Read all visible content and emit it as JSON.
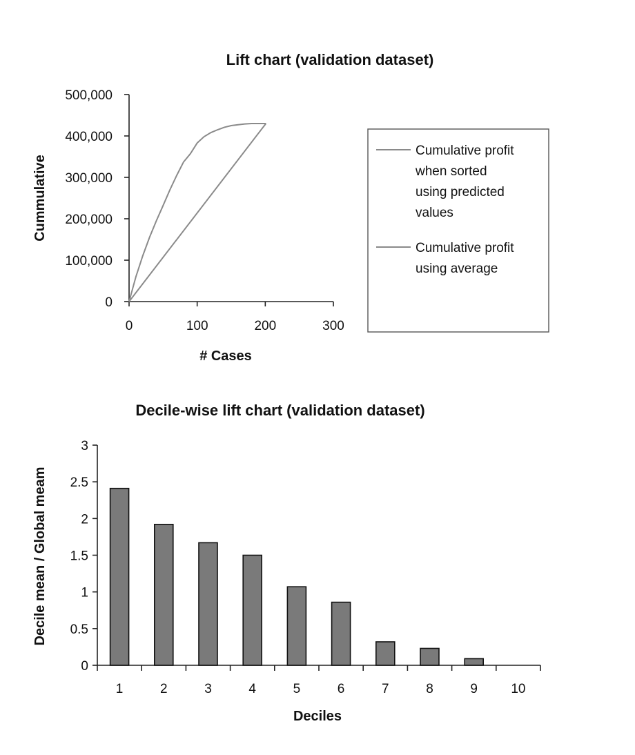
{
  "chart_data": [
    {
      "type": "line",
      "title": "Lift chart (validation dataset)",
      "xlabel": "# Cases",
      "ylabel": "Cummulative",
      "xlim": [
        0,
        300
      ],
      "ylim": [
        0,
        500000
      ],
      "x_ticks": [
        "0",
        "100",
        "200",
        "300"
      ],
      "y_ticks": [
        "0",
        "100,000",
        "200,000",
        "300,000",
        "400,000",
        "500,000"
      ],
      "grid": false,
      "legend_position": "right",
      "series": [
        {
          "name": "Cumulative profit when sorted using predicted values",
          "legend_lines": [
            "Cumulative profit",
            "when sorted",
            "using predicted",
            "values"
          ],
          "x": [
            0,
            10,
            20,
            30,
            40,
            50,
            60,
            70,
            80,
            90,
            100,
            110,
            120,
            130,
            140,
            150,
            160,
            170,
            180,
            190,
            201
          ],
          "y": [
            0,
            60000,
            110000,
            155000,
            195000,
            232000,
            270000,
            305000,
            337000,
            357000,
            383000,
            398000,
            408000,
            415000,
            421000,
            425000,
            427000,
            429000,
            430000,
            430000,
            430000
          ]
        },
        {
          "name": "Cumulative profit using average",
          "legend_lines": [
            "Cumulative profit",
            "using average"
          ],
          "x": [
            0,
            201
          ],
          "y": [
            0,
            430000
          ]
        }
      ]
    },
    {
      "type": "bar",
      "title": "Decile-wise lift chart (validation dataset)",
      "xlabel": "Deciles",
      "ylabel": "Decile mean / Global meam",
      "categories": [
        "1",
        "2",
        "3",
        "4",
        "5",
        "6",
        "7",
        "8",
        "9",
        "10"
      ],
      "values": [
        2.41,
        1.92,
        1.67,
        1.5,
        1.07,
        0.86,
        0.32,
        0.23,
        0.09,
        0
      ],
      "ylim": [
        0,
        3
      ],
      "y_ticks": [
        "0",
        "0.5",
        "1",
        "1.5",
        "2",
        "2.5",
        "3"
      ],
      "grid": false
    }
  ]
}
